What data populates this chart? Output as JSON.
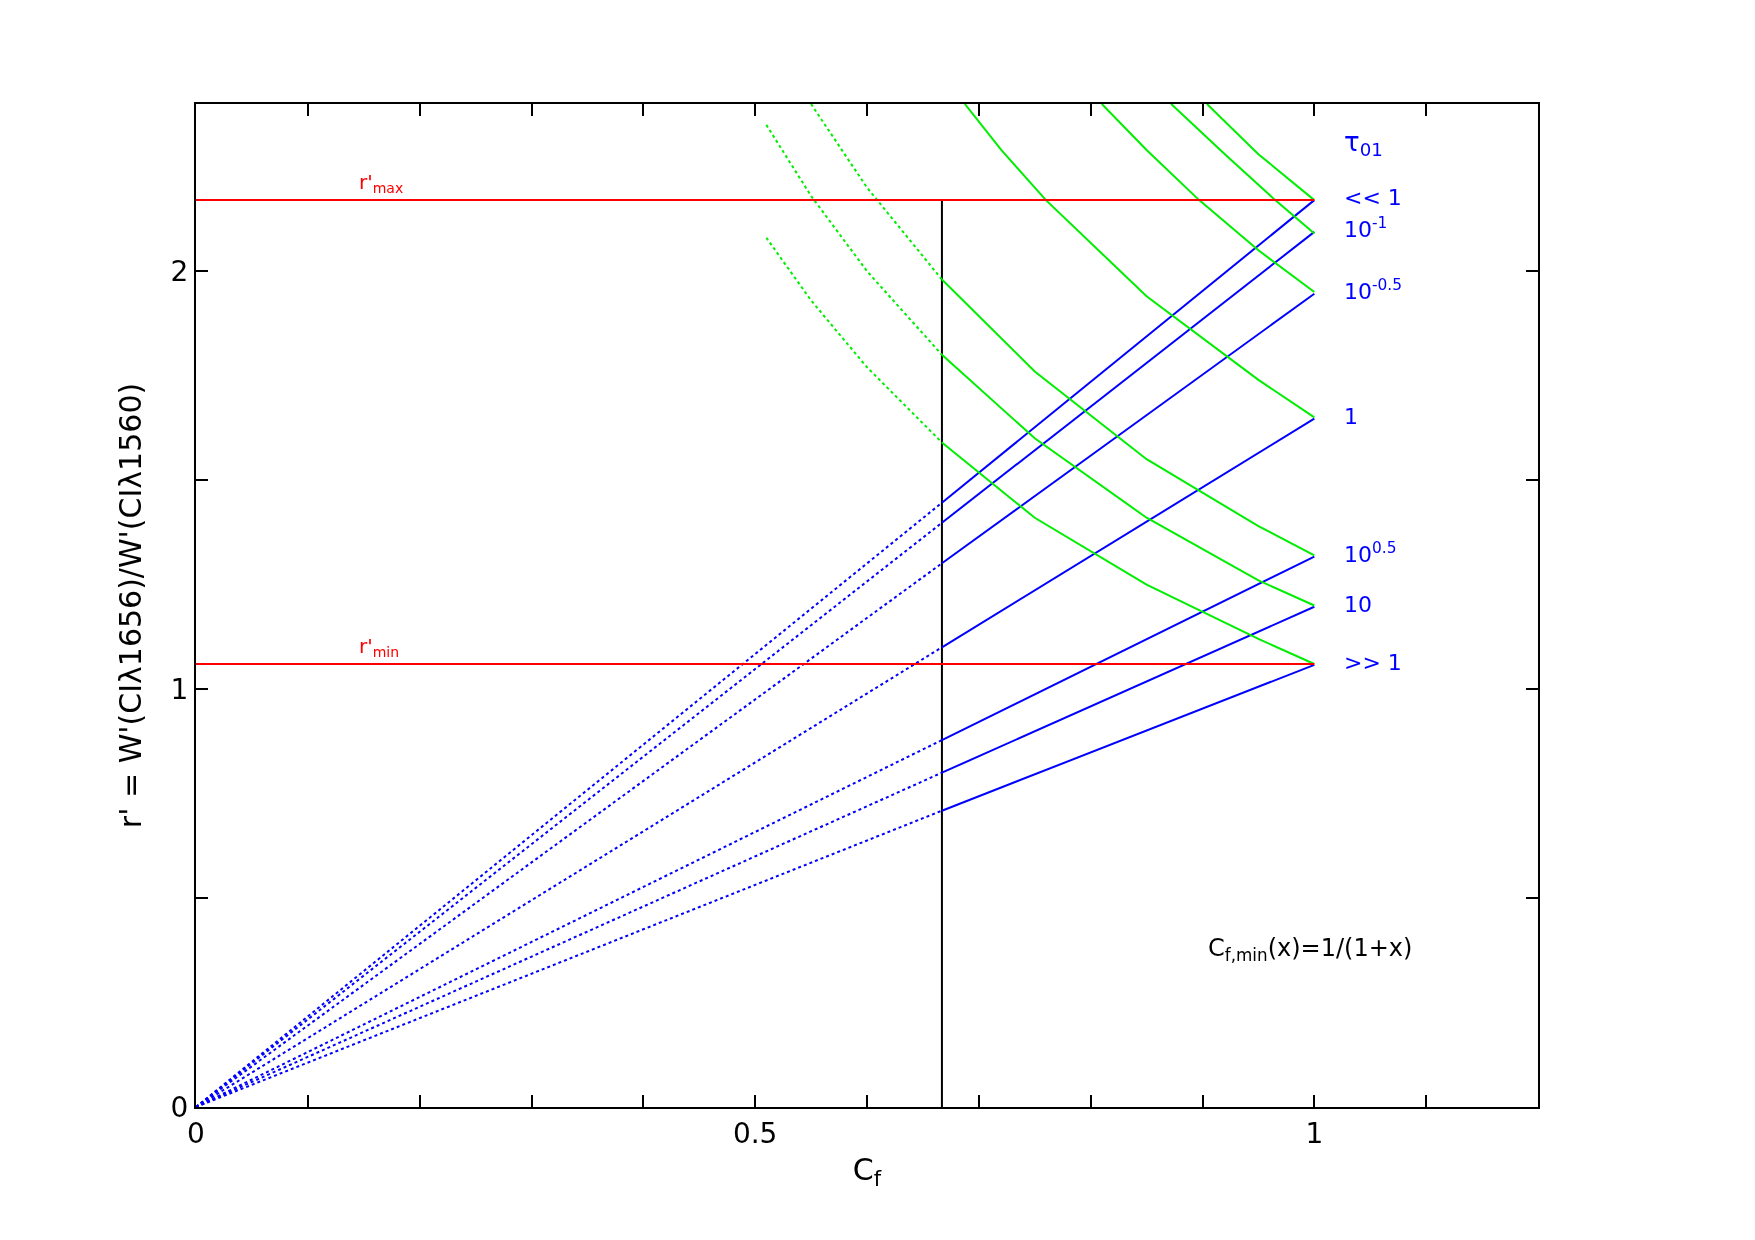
{
  "chart_data": {
    "type": "line",
    "xlabel": "C$_{f}$",
    "ylabel": "r' = W'(CIλ1656)/W'(CIλ1560)",
    "legend_title": "τ$_{01}$",
    "xlim": [
      0,
      1.2
    ],
    "xticks": [
      0,
      {
        "value": 0.1,
        "label": null
      },
      {
        "value": 0.2,
        "label": null
      },
      {
        "value": 0.3,
        "label": null
      },
      {
        "value": 0.4,
        "label": null
      },
      0.5,
      {
        "value": 0.6,
        "label": null
      },
      {
        "value": 0.7,
        "label": null
      },
      {
        "value": 0.8,
        "label": null
      },
      {
        "value": 0.9,
        "label": null
      },
      1,
      {
        "value": 1.1,
        "label": null
      }
    ],
    "ylim": [
      0,
      2.4
    ],
    "yticks": [
      0,
      {
        "value": 0.5,
        "label": null
      },
      1,
      {
        "value": 1.5,
        "label": null
      },
      2
    ],
    "grid": false,
    "legend": false,
    "marker": "none",
    "ref_lines": [
      {
        "axis": "y",
        "value": 2.17,
        "label": "r'$_{max}$",
        "color": "#ff0000"
      },
      {
        "axis": "y",
        "value": 1.06,
        "label": "r'$_{min}$",
        "color": "#ff0000"
      }
    ],
    "annotations": [
      "C$_{f,min}$(x)=1/(1+x)"
    ],
    "series": [
      {
        "color": "#000000",
        "x": [
          0.667,
          0.667
        ],
        "values": [
          0,
          2.17
        ],
        "line_style": "solid"
      },
      {
        "color": "#0000ff",
        "x": [
          0,
          0.667
        ],
        "values": [
          0,
          1.446
        ],
        "line_style": "dotted"
      },
      {
        "color": "#0000ff",
        "x": [
          0,
          0.667
        ],
        "values": [
          0,
          1.398
        ],
        "line_style": "dotted"
      },
      {
        "color": "#0000ff",
        "x": [
          0,
          0.667
        ],
        "values": [
          0,
          1.301
        ],
        "line_style": "dotted"
      },
      {
        "color": "#0000ff",
        "x": [
          0,
          0.667
        ],
        "values": [
          0,
          1.1
        ],
        "line_style": "dotted"
      },
      {
        "color": "#0000ff",
        "x": [
          0,
          0.667
        ],
        "values": [
          0,
          0.878
        ],
        "line_style": "dotted"
      },
      {
        "color": "#0000ff",
        "x": [
          0,
          0.667
        ],
        "values": [
          0,
          0.8
        ],
        "line_style": "dotted"
      },
      {
        "color": "#0000ff",
        "x": [
          0,
          0.667
        ],
        "values": [
          0,
          0.709
        ],
        "line_style": "dotted"
      },
      {
        "name": "<< 1",
        "color": "#0000ff",
        "x": [
          0.667,
          1
        ],
        "values": [
          1.446,
          2.17
        ],
        "line_style": "solid"
      },
      {
        "name": "10$^{-1}$",
        "color": "#0000ff",
        "x": [
          0.667,
          1
        ],
        "values": [
          1.398,
          2.094
        ],
        "line_style": "solid"
      },
      {
        "name": "10$^{-0.5}$",
        "color": "#0000ff",
        "x": [
          0.667,
          1
        ],
        "values": [
          1.301,
          1.946
        ],
        "line_style": "solid"
      },
      {
        "name": "1",
        "color": "#0000ff",
        "x": [
          0.667,
          1
        ],
        "values": [
          1.1,
          1.647
        ],
        "line_style": "solid"
      },
      {
        "name": "10$^{0.5}$",
        "color": "#0000ff",
        "x": [
          0.667,
          1
        ],
        "values": [
          0.878,
          1.317
        ],
        "line_style": "solid"
      },
      {
        "name": "10",
        "color": "#0000ff",
        "x": [
          0.667,
          1
        ],
        "values": [
          0.8,
          1.197
        ],
        "line_style": "solid"
      },
      {
        "name": ">> 1",
        "color": "#0000ff",
        "x": [
          0.667,
          1
        ],
        "values": [
          0.709,
          1.058
        ],
        "line_style": "solid"
      },
      {
        "color": "#00ee00",
        "x": [
          0.51,
          0.55,
          0.6,
          0.667
        ],
        "values": [
          2.08,
          1.93,
          1.77,
          1.59
        ],
        "line_style": "dotted"
      },
      {
        "color": "#00ee00",
        "x": [
          0.667,
          0.75,
          0.85,
          0.95,
          1
        ],
        "values": [
          1.59,
          1.41,
          1.25,
          1.12,
          1.06
        ],
        "line_style": "solid"
      },
      {
        "color": "#00ee00",
        "x": [
          0.51,
          0.55,
          0.6,
          0.667
        ],
        "values": [
          2.35,
          2.18,
          2.0,
          1.8
        ],
        "line_style": "dotted"
      },
      {
        "color": "#00ee00",
        "x": [
          0.667,
          0.75,
          0.85,
          0.95,
          1
        ],
        "values": [
          1.8,
          1.6,
          1.41,
          1.26,
          1.2
        ],
        "line_style": "solid"
      },
      {
        "color": "#00ee00",
        "x": [
          0.55,
          0.6,
          0.667
        ],
        "values": [
          2.4,
          2.2,
          1.98
        ],
        "line_style": "dotted"
      },
      {
        "color": "#00ee00",
        "x": [
          0.667,
          0.75,
          0.85,
          0.95,
          1
        ],
        "values": [
          1.98,
          1.76,
          1.55,
          1.39,
          1.32
        ],
        "line_style": "solid"
      },
      {
        "color": "#00ee00",
        "x": [
          0.6875,
          0.72,
          0.76,
          0.85,
          0.95,
          1
        ],
        "values": [
          2.4,
          2.29,
          2.17,
          1.94,
          1.74,
          1.65
        ],
        "line_style": "solid"
      },
      {
        "color": "#00ee00",
        "x": [
          0.81,
          0.85,
          0.897,
          0.95,
          1
        ],
        "values": [
          2.4,
          2.29,
          2.17,
          2.05,
          1.95
        ],
        "line_style": "solid"
      },
      {
        "color": "#00ee00",
        "x": [
          0.872,
          0.92,
          0.965,
          1
        ],
        "values": [
          2.4,
          2.28,
          2.17,
          2.09
        ],
        "line_style": "solid"
      },
      {
        "color": "#00ee00",
        "x": [
          0.904,
          0.95,
          1
        ],
        "values": [
          2.4,
          2.28,
          2.17
        ],
        "line_style": "solid"
      }
    ]
  }
}
